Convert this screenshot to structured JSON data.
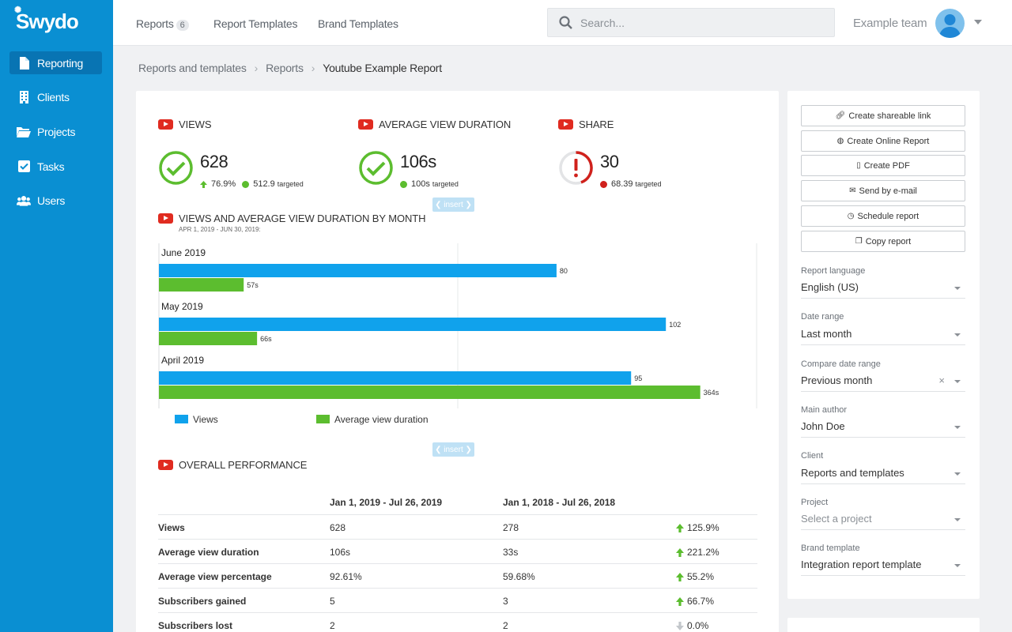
{
  "app": {
    "name": "Swydo"
  },
  "sidebar": {
    "items": [
      {
        "label": "Reporting",
        "icon": "file-icon"
      },
      {
        "label": "Clients",
        "icon": "building-icon"
      },
      {
        "label": "Projects",
        "icon": "folder-icon"
      },
      {
        "label": "Tasks",
        "icon": "checkbox-icon"
      },
      {
        "label": "Users",
        "icon": "users-icon"
      }
    ]
  },
  "topbar": {
    "tabs": [
      {
        "label": "Reports",
        "badge": "6"
      },
      {
        "label": "Report Templates"
      },
      {
        "label": "Brand Templates"
      }
    ],
    "search_placeholder": "Search...",
    "team": "Example team"
  },
  "breadcrumb": [
    "Reports and templates",
    "Reports",
    "Youtube Example Report"
  ],
  "kpis": [
    {
      "title": "VIEWS",
      "value": "628",
      "change": "76.9%",
      "target": "512.9",
      "target_suffix": "targeted",
      "status": "ok",
      "dot_color": "#5cbd2f"
    },
    {
      "title": "AVERAGE VIEW DURATION",
      "value": "106s",
      "target": "100s",
      "target_suffix": "targeted",
      "status": "ok",
      "dot_color": "#5cbd2f"
    },
    {
      "title": "SHARE",
      "value": "30",
      "target": "68.39",
      "target_suffix": "targeted",
      "status": "warn",
      "dot_color": "#d0211c"
    }
  ],
  "insert_label": "❮ insert ❯",
  "chart_section": {
    "title": "VIEWS AND AVERAGE VIEW DURATION BY MONTH",
    "subtitle": "APR 1, 2019 - JUN 30, 2019:"
  },
  "chart_data": {
    "type": "bar",
    "orientation": "horizontal",
    "categories": [
      "June 2019",
      "May 2019",
      "April 2019"
    ],
    "series": [
      {
        "name": "Views",
        "values": [
          80,
          102,
          95
        ],
        "labels": [
          "80",
          "102",
          "95"
        ],
        "color": "#10a2ec"
      },
      {
        "name": "Average view duration",
        "values": [
          57,
          66,
          364
        ],
        "labels": [
          "57s",
          "66s",
          "364s"
        ],
        "color": "#5cbd2f"
      }
    ],
    "legend": "bottom-left",
    "grid": true
  },
  "table_section": {
    "title": "OVERALL PERFORMANCE",
    "headers": [
      "",
      "Jan 1, 2019 - Jul 26, 2019",
      "Jan 1, 2018 - Jul 26, 2018",
      ""
    ],
    "rows": [
      {
        "metric": "Views",
        "current": "628",
        "previous": "278",
        "change": "125.9%",
        "dir": "up"
      },
      {
        "metric": "Average view duration",
        "current": "106s",
        "previous": "33s",
        "change": "221.2%",
        "dir": "up"
      },
      {
        "metric": "Average view percentage",
        "current": "92.61%",
        "previous": "59.68%",
        "change": "55.2%",
        "dir": "up"
      },
      {
        "metric": "Subscribers gained",
        "current": "5",
        "previous": "3",
        "change": "66.7%",
        "dir": "up"
      },
      {
        "metric": "Subscribers lost",
        "current": "2",
        "previous": "2",
        "change": "0.0%",
        "dir": "flat"
      }
    ]
  },
  "actions": [
    {
      "label": "Create shareable link",
      "icon": "link-icon"
    },
    {
      "label": "Create Online Report",
      "icon": "globe-icon"
    },
    {
      "label": "Create PDF",
      "icon": "pdf-icon"
    },
    {
      "label": "Send by e-mail",
      "icon": "mail-icon"
    },
    {
      "label": "Schedule report",
      "icon": "clock-icon"
    },
    {
      "label": "Copy report",
      "icon": "copy-icon"
    }
  ],
  "settings": [
    {
      "label": "Report language",
      "value": "English (US)"
    },
    {
      "label": "Date range",
      "value": "Last month"
    },
    {
      "label": "Compare date range",
      "value": "Previous month",
      "clearable": true
    },
    {
      "label": "Main author",
      "value": "John Doe"
    },
    {
      "label": "Client",
      "value": "Reports and templates"
    },
    {
      "label": "Project",
      "value": "Select a project",
      "placeholder": true
    },
    {
      "label": "Brand template",
      "value": "Integration report template"
    }
  ]
}
